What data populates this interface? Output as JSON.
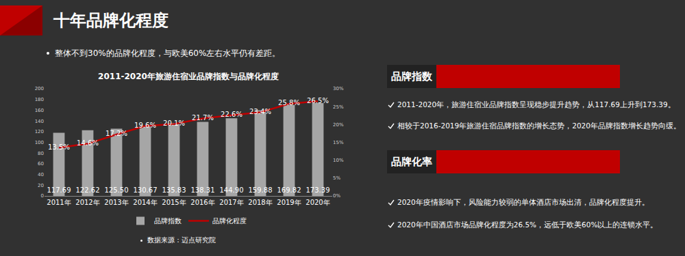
{
  "title": "十年品牌化程度",
  "subtitle": "整体不到30%的品牌化程度，与欧美60%左右水平仍有差距。",
  "chart_data": {
    "type": "bar",
    "title": "2011-2020年旅游住宿业品牌指数与品牌化程度",
    "categories": [
      "2011年",
      "2012年",
      "2013年",
      "2014年",
      "2015年",
      "2016年",
      "2017年",
      "2018年",
      "2019年",
      "2020年"
    ],
    "series": [
      {
        "name": "品牌指数",
        "type": "bar",
        "color": "#a6a6a6",
        "values": [
          117.69,
          122.62,
          125.5,
          130.67,
          135.83,
          138.31,
          144.9,
          159.88,
          169.82,
          173.39
        ],
        "value_labels": [
          "117.69",
          "122.62",
          "125.50",
          "130.67",
          "135.83",
          "138.31",
          "144.90",
          "159.88",
          "169.82",
          "173.39"
        ]
      },
      {
        "name": "品牌化程度",
        "type": "line",
        "color": "#c00000",
        "axis": "y2",
        "line_style": "solid",
        "values": [
          13.5,
          14.6,
          17.2,
          19.6,
          20.1,
          21.7,
          22.6,
          23.4,
          25.8,
          26.5
        ],
        "value_labels": [
          "13.5%",
          "14.6%",
          "17.2%",
          "19.6%",
          "20.1%",
          "21.7%",
          "22.6%",
          "23.4%",
          "25.8%",
          "26.5%"
        ]
      }
    ],
    "ylim": [
      0,
      200
    ],
    "yticks": [
      0,
      20,
      40,
      60,
      80,
      100,
      120,
      140,
      160,
      180,
      200
    ],
    "y2lim": [
      0,
      30
    ],
    "y2ticks": [
      {
        "value": 0,
        "label": "0%"
      },
      {
        "value": 5,
        "label": "5%"
      },
      {
        "value": 10,
        "label": "10%"
      },
      {
        "value": 15,
        "label": "15%"
      },
      {
        "value": 20,
        "label": "20%"
      },
      {
        "value": 25,
        "label": "25%"
      },
      {
        "value": 30,
        "label": "30%"
      }
    ],
    "grid": false,
    "legend": "bottom",
    "data_labels": true
  },
  "source": "数据来源：迈点研究院",
  "panels": [
    {
      "heading": "品牌指数",
      "points": [
        "2011-2020年，旅游住宿业品牌指数呈现稳步提升趋势，从117.69上升到173.39。",
        "相较于2016-2019年旅游住宿品牌指数的增长态势，2020年品牌指数增长趋势向缓。"
      ]
    },
    {
      "heading": "品牌化率",
      "points": [
        "2020年疫情影响下，风险能力较弱的单体酒店市场出清，品牌化程度提升。",
        "2020年中国酒店市场品牌化程度为26.5%，远低于欧美60%以上的连锁水平。"
      ]
    }
  ]
}
